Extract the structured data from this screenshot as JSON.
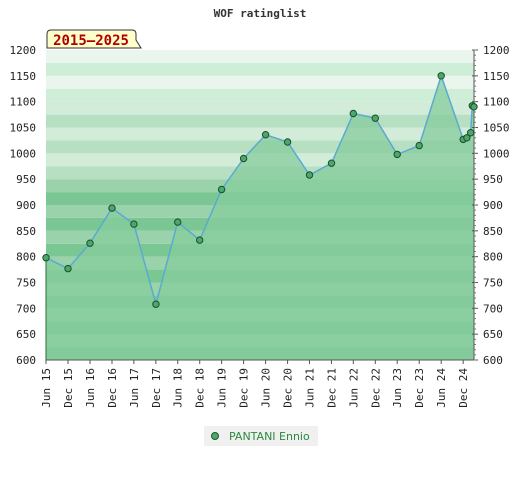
{
  "chart_data": {
    "type": "area",
    "title": "WOF ratinglist",
    "period_label": "2015–2025",
    "ylim": [
      600,
      1200
    ],
    "yticks": [
      600,
      650,
      700,
      750,
      800,
      850,
      900,
      950,
      1000,
      1050,
      1100,
      1150,
      1200
    ],
    "xlim": [
      "2015-06-01",
      "2025-03-01"
    ],
    "xtick_labels": [
      "Jun 15",
      "Dec 15",
      "Jun 16",
      "Dec 16",
      "Jun 17",
      "Dec 17",
      "Jun 18",
      "Dec 18",
      "Jun 19",
      "Dec 19",
      "Jun 20",
      "Dec 20",
      "Jun 21",
      "Dec 21",
      "Jun 22",
      "Dec 22",
      "Jun 23",
      "Dec 23",
      "Jun 24",
      "Dec 24"
    ],
    "xtick_dates": [
      "2015-06-01",
      "2015-12-01",
      "2016-06-01",
      "2016-12-01",
      "2017-06-01",
      "2017-12-01",
      "2018-06-01",
      "2018-12-01",
      "2019-06-01",
      "2019-12-01",
      "2020-06-01",
      "2020-12-01",
      "2021-06-01",
      "2021-12-01",
      "2022-06-01",
      "2022-12-01",
      "2023-06-01",
      "2023-12-01",
      "2024-06-01",
      "2024-12-01"
    ],
    "series": [
      {
        "name": "PANTANI Ennio",
        "color": "#4aa86a",
        "x": [
          "2015-06-01",
          "2015-12-01",
          "2016-06-01",
          "2016-12-01",
          "2017-06-01",
          "2017-12-01",
          "2018-06-01",
          "2018-12-01",
          "2019-06-01",
          "2019-12-01",
          "2020-06-01",
          "2020-12-01",
          "2021-06-01",
          "2021-12-01",
          "2022-06-01",
          "2022-12-01",
          "2023-06-01",
          "2023-12-01",
          "2024-06-01",
          "2024-12-01",
          "2025-01-01",
          "2025-02-01",
          "2025-02-15",
          "2025-03-01"
        ],
        "y": [
          798,
          777,
          826,
          894,
          863,
          708,
          867,
          832,
          930,
          990,
          1036,
          1022,
          958,
          981,
          1077,
          1068,
          998,
          1015,
          1150,
          1027,
          1030,
          1040,
          1092,
          1090
        ]
      }
    ],
    "grid": true,
    "legend_position": "bottom-center"
  },
  "colors": {
    "band_dark": "#7bc793",
    "band_light": "#9ad3ab",
    "band_pale": "#eaf6ed",
    "fill": "#86cc9c",
    "line": "#5aaad2",
    "marker_fill": "#4aa86a",
    "marker_stroke": "#1d4e2a"
  }
}
